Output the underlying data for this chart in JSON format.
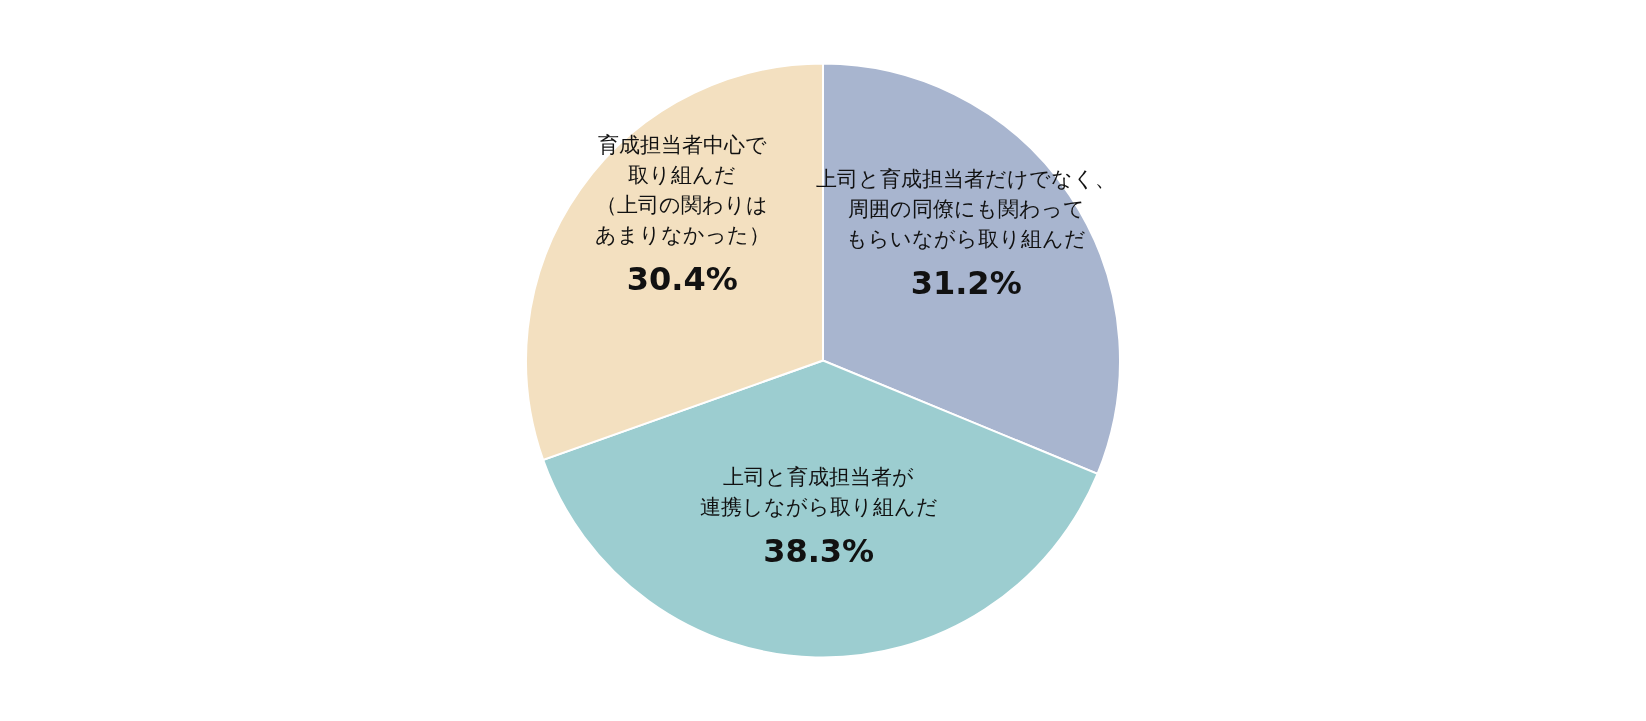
{
  "chart_data": {
    "type": "pie",
    "categories": [
      "上司と育成担当者だけでなく、周囲の同僚にも関わってもらいながら取り組んだ",
      "上司と育成担当者が連携しながら取り組んだ",
      "育成担当者中心で取り組んだ（上司の関わりはあまりなかった）"
    ],
    "values": [
      31.2,
      38.3,
      30.4
    ],
    "value_labels": [
      "31.2%",
      "38.3%",
      "30.4%"
    ],
    "colors": [
      "#a8b5cf",
      "#9ccdd0",
      "#f3e0c0"
    ],
    "legend": false
  }
}
